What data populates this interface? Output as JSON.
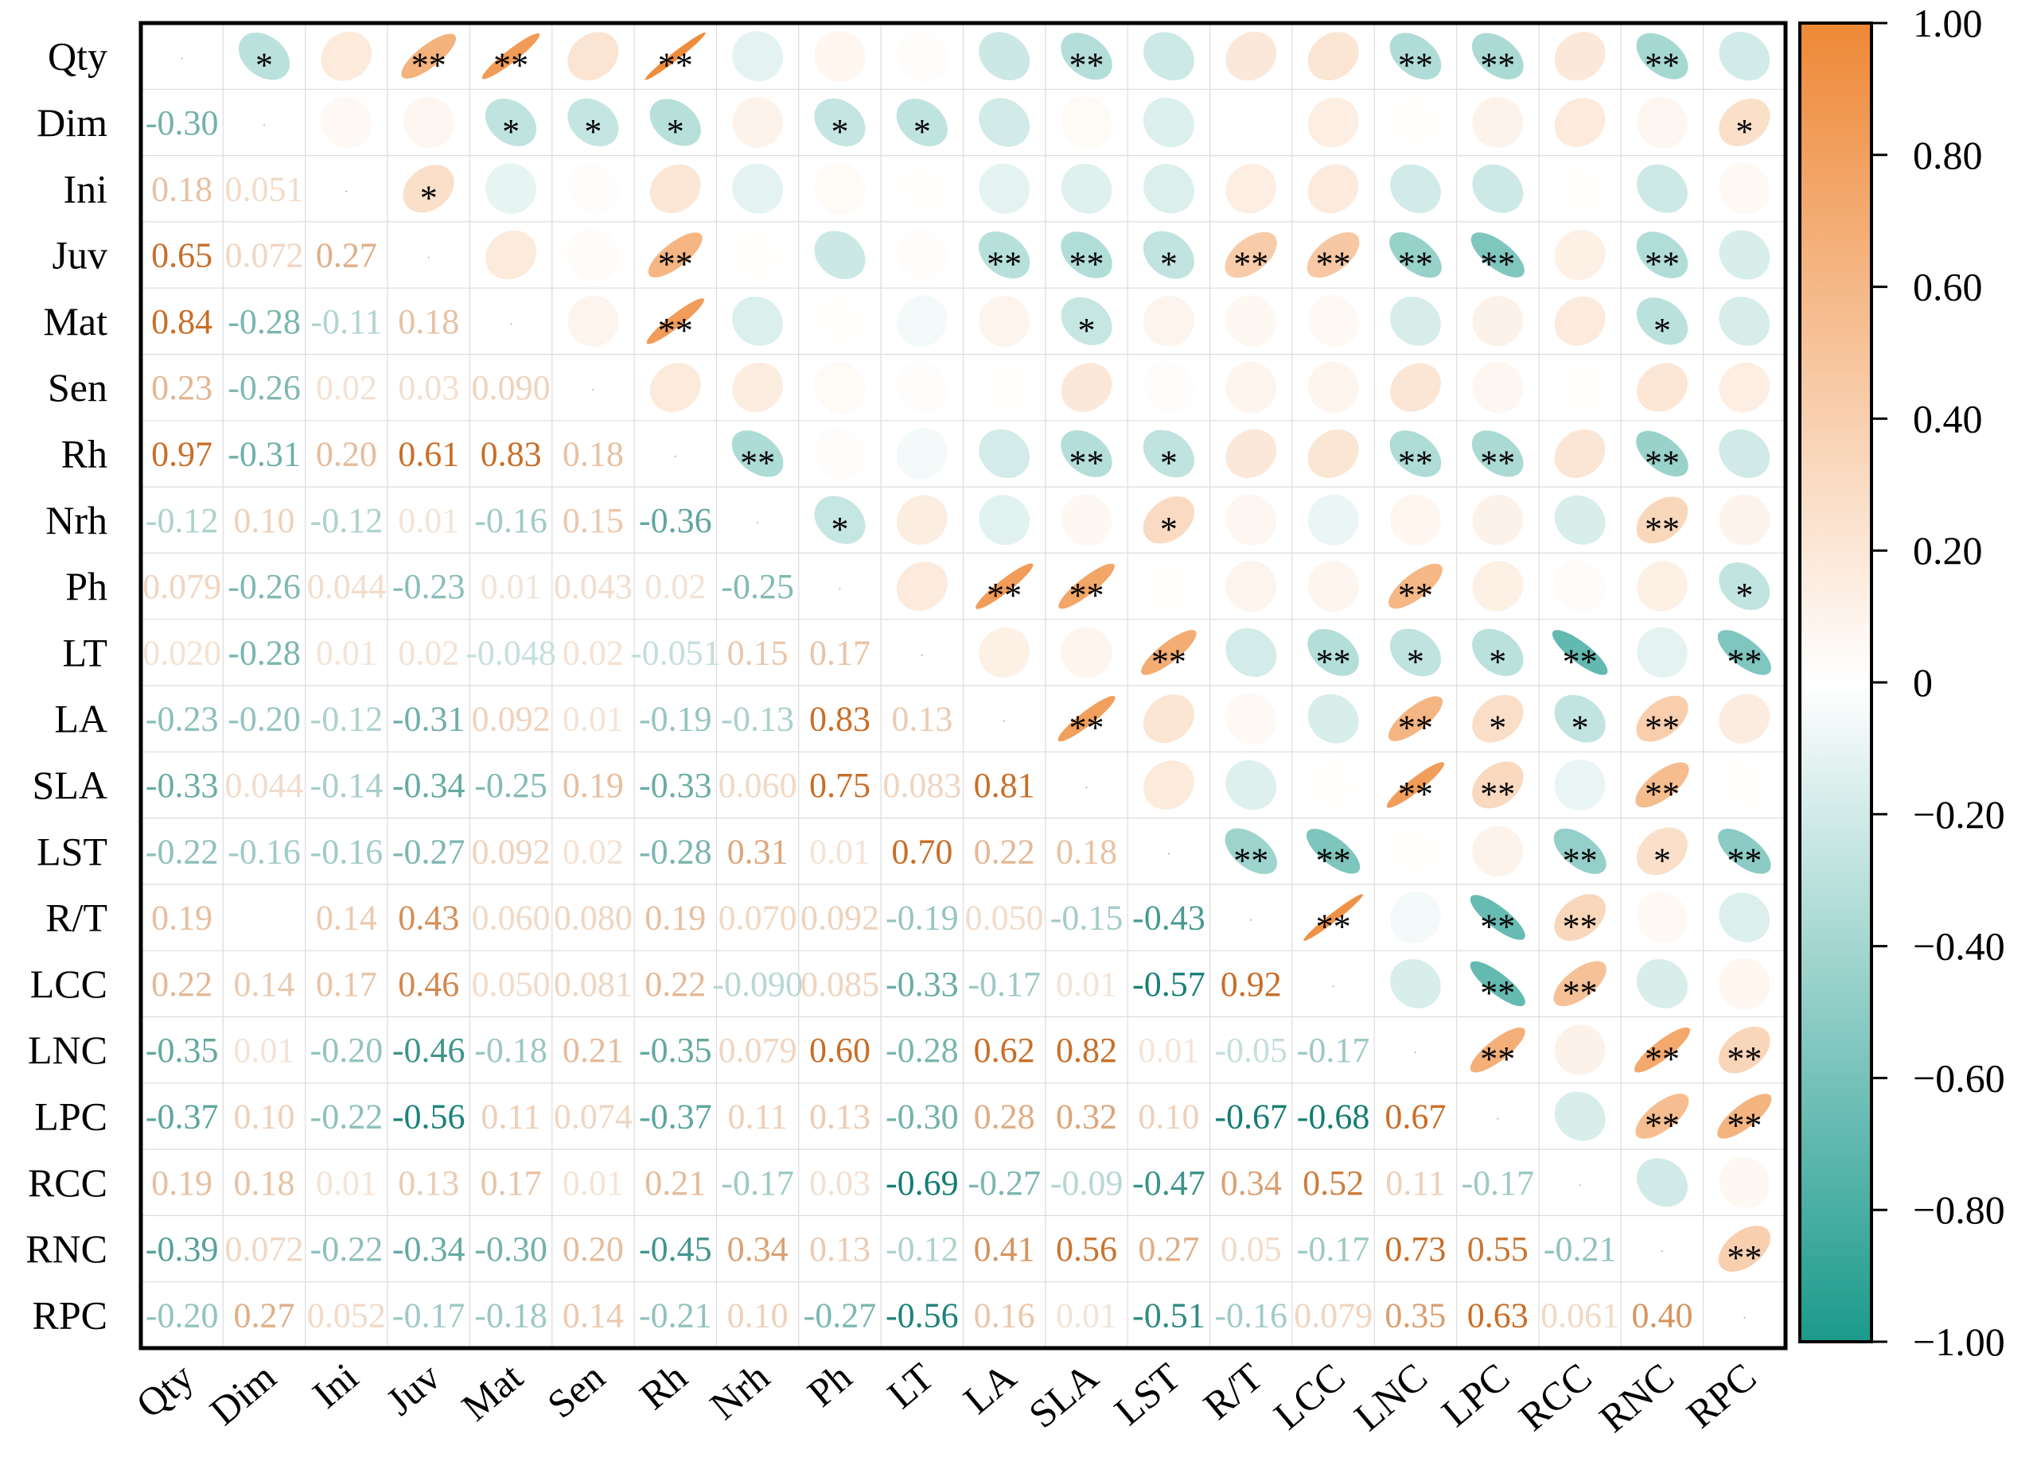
{
  "chart_data": {
    "type": "heatmap",
    "variant": "correlation-matrix (ellipses upper triangle, coefficients lower triangle, significance stars)",
    "variables": [
      "Qty",
      "Dim",
      "Ini",
      "Juv",
      "Mat",
      "Sen",
      "Rh",
      "Nrh",
      "Ph",
      "LT",
      "LA",
      "SLA",
      "LST",
      "R/T",
      "LCC",
      "LNC",
      "LPC",
      "RCC",
      "RNC",
      "RPC"
    ],
    "coefficient_labels": [
      [
        "",
        "",
        "",
        "",
        "",
        "",
        "",
        "",
        "",
        "",
        "",
        "",
        "",
        "",
        "",
        "",
        "",
        "",
        "",
        ""
      ],
      [
        "-0.30",
        "",
        "",
        "",
        "",
        "",
        "",
        "",
        "",
        "",
        "",
        "",
        "",
        "",
        "",
        "",
        "",
        "",
        "",
        ""
      ],
      [
        "0.18",
        "0.051",
        "",
        "",
        "",
        "",
        "",
        "",
        "",
        "",
        "",
        "",
        "",
        "",
        "",
        "",
        "",
        "",
        "",
        ""
      ],
      [
        "0.65",
        "0.072",
        "0.27",
        "",
        "",
        "",
        "",
        "",
        "",
        "",
        "",
        "",
        "",
        "",
        "",
        "",
        "",
        "",
        "",
        ""
      ],
      [
        "0.84",
        "-0.28",
        "-0.11",
        "0.18",
        "",
        "",
        "",
        "",
        "",
        "",
        "",
        "",
        "",
        "",
        "",
        "",
        "",
        "",
        "",
        ""
      ],
      [
        "0.23",
        "-0.26",
        "0.02",
        "0.03",
        "0.090",
        "",
        "",
        "",
        "",
        "",
        "",
        "",
        "",
        "",
        "",
        "",
        "",
        "",
        "",
        ""
      ],
      [
        "0.97",
        "-0.31",
        "0.20",
        "0.61",
        "0.83",
        "0.18",
        "",
        "",
        "",
        "",
        "",
        "",
        "",
        "",
        "",
        "",
        "",
        "",
        "",
        ""
      ],
      [
        "-0.12",
        "0.10",
        "-0.12",
        "0.01",
        "-0.16",
        "0.15",
        "-0.36",
        "",
        "",
        "",
        "",
        "",
        "",
        "",
        "",
        "",
        "",
        "",
        "",
        ""
      ],
      [
        "0.079",
        "-0.26",
        "0.044",
        "-0.23",
        "0.01",
        "0.043",
        "0.02",
        "-0.25",
        "",
        "",
        "",
        "",
        "",
        "",
        "",
        "",
        "",
        "",
        "",
        ""
      ],
      [
        "0.020",
        "-0.28",
        "0.01",
        "0.02",
        "-0.048",
        "0.02",
        "-0.051",
        "0.15",
        "0.17",
        "",
        "",
        "",
        "",
        "",
        "",
        "",
        "",
        "",
        "",
        ""
      ],
      [
        "-0.23",
        "-0.20",
        "-0.12",
        "-0.31",
        "0.092",
        "0.01",
        "-0.19",
        "-0.13",
        "0.83",
        "0.13",
        "",
        "",
        "",
        "",
        "",
        "",
        "",
        "",
        "",
        ""
      ],
      [
        "-0.33",
        "0.044",
        "-0.14",
        "-0.34",
        "-0.25",
        "0.19",
        "-0.33",
        "0.060",
        "0.75",
        "0.083",
        "0.81",
        "",
        "",
        "",
        "",
        "",
        "",
        "",
        "",
        ""
      ],
      [
        "-0.22",
        "-0.16",
        "-0.16",
        "-0.27",
        "0.092",
        "0.02",
        "-0.28",
        "0.31",
        "0.01",
        "0.70",
        "0.22",
        "0.18",
        "",
        "",
        "",
        "",
        "",
        "",
        "",
        ""
      ],
      [
        "0.19",
        "",
        "0.14",
        "0.43",
        "0.060",
        "0.080",
        "0.19",
        "0.070",
        "0.092",
        "-0.19",
        "0.050",
        "-0.15",
        "-0.43",
        "",
        "",
        "",
        "",
        "",
        "",
        ""
      ],
      [
        "0.22",
        "0.14",
        "0.17",
        "0.46",
        "0.050",
        "0.081",
        "0.22",
        "-0.090",
        "0.085",
        "-0.33",
        "-0.17",
        "0.01",
        "-0.57",
        "0.92",
        "",
        "",
        "",
        "",
        "",
        ""
      ],
      [
        "-0.35",
        "0.01",
        "-0.20",
        "-0.46",
        "-0.18",
        "0.21",
        "-0.35",
        "0.079",
        "0.60",
        "-0.28",
        "0.62",
        "0.82",
        "0.01",
        "-0.05",
        "-0.17",
        "",
        "",
        "",
        "",
        ""
      ],
      [
        "-0.37",
        "0.10",
        "-0.22",
        "-0.56",
        "0.11",
        "0.074",
        "-0.37",
        "0.11",
        "0.13",
        "-0.30",
        "0.28",
        "0.32",
        "0.10",
        "-0.67",
        "-0.68",
        "0.67",
        "",
        "",
        "",
        ""
      ],
      [
        "0.19",
        "0.18",
        "0.01",
        "0.13",
        "0.17",
        "0.01",
        "0.21",
        "-0.17",
        "0.03",
        "-0.69",
        "-0.27",
        "-0.09",
        "-0.47",
        "0.34",
        "0.52",
        "0.11",
        "-0.17",
        "",
        "",
        ""
      ],
      [
        "-0.39",
        "0.072",
        "-0.22",
        "-0.34",
        "-0.30",
        "0.20",
        "-0.45",
        "0.34",
        "0.13",
        "-0.12",
        "0.41",
        "0.56",
        "0.27",
        "0.05",
        "-0.17",
        "0.73",
        "0.55",
        "-0.21",
        "",
        ""
      ],
      [
        "-0.20",
        "0.27",
        "0.052",
        "-0.17",
        "-0.18",
        "0.14",
        "-0.21",
        "0.10",
        "-0.27",
        "-0.56",
        "0.16",
        "0.01",
        "-0.51",
        "-0.16",
        "0.079",
        "0.35",
        "0.63",
        "0.061",
        "0.40",
        ""
      ]
    ],
    "significance": [
      [
        "",
        "*",
        "",
        "**",
        "**",
        "",
        "**",
        "",
        "",
        "",
        "",
        "**",
        "",
        "",
        "",
        "**",
        "**",
        "",
        "**",
        ""
      ],
      [
        "",
        "",
        "",
        "",
        "*",
        "*",
        "*",
        "",
        "*",
        "*",
        "",
        "",
        "",
        "",
        "",
        "",
        "",
        "",
        "",
        "*"
      ],
      [
        "",
        "",
        "",
        "*",
        "",
        "",
        "",
        "",
        "",
        "",
        "",
        "",
        "",
        "",
        "",
        "",
        "",
        "",
        "",
        ""
      ],
      [
        "",
        "",
        "",
        "",
        "",
        "",
        "**",
        "",
        "",
        "",
        "**",
        "**",
        "*",
        "**",
        "**",
        "**",
        "**",
        "",
        "**",
        ""
      ],
      [
        "",
        "",
        "",
        "",
        "",
        "",
        "**",
        "",
        "",
        "",
        "",
        "*",
        "",
        "",
        "",
        "",
        "",
        "",
        "*",
        ""
      ],
      [
        "",
        "",
        "",
        "",
        "",
        "",
        "",
        "",
        "",
        "",
        "",
        "",
        "",
        "",
        "",
        "",
        "",
        "",
        "",
        ""
      ],
      [
        "",
        "",
        "",
        "",
        "",
        "",
        "",
        "**",
        "",
        "",
        "",
        "**",
        "*",
        "",
        "",
        "**",
        "**",
        "",
        "**",
        ""
      ],
      [
        "",
        "",
        "",
        "",
        "",
        "",
        "",
        "",
        "*",
        "",
        "",
        "",
        "*",
        "",
        "",
        "",
        "",
        "",
        "**",
        ""
      ],
      [
        "",
        "",
        "",
        "",
        "",
        "",
        "",
        "",
        "",
        "",
        "**",
        "**",
        "",
        "",
        "",
        "**",
        "",
        "",
        "",
        "*"
      ],
      [
        "",
        "",
        "",
        "",
        "",
        "",
        "",
        "",
        "",
        "",
        "",
        "",
        "**",
        "",
        "**",
        "*",
        "*",
        "**",
        "",
        "**"
      ],
      [
        "",
        "",
        "",
        "",
        "",
        "",
        "",
        "",
        "",
        "",
        "",
        "**",
        "",
        "",
        "",
        "**",
        "*",
        "*",
        "**",
        ""
      ],
      [
        "",
        "",
        "",
        "",
        "",
        "",
        "",
        "",
        "",
        "",
        "",
        "",
        "",
        "",
        "",
        "**",
        "**",
        "",
        "**",
        ""
      ],
      [
        "",
        "",
        "",
        "",
        "",
        "",
        "",
        "",
        "",
        "",
        "",
        "",
        "",
        "**",
        "**",
        "",
        "",
        "**",
        "*",
        "**"
      ],
      [
        "",
        "",
        "",
        "",
        "",
        "",
        "",
        "",
        "",
        "",
        "",
        "",
        "",
        "",
        "**",
        "",
        "**",
        "**",
        "",
        ""
      ],
      [
        "",
        "",
        "",
        "",
        "",
        "",
        "",
        "",
        "",
        "",
        "",
        "",
        "",
        "",
        "",
        "",
        "**",
        "**",
        "",
        ""
      ],
      [
        "",
        "",
        "",
        "",
        "",
        "",
        "",
        "",
        "",
        "",
        "",
        "",
        "",
        "",
        "",
        "",
        "**",
        "",
        "**",
        "**"
      ],
      [
        "",
        "",
        "",
        "",
        "",
        "",
        "",
        "",
        "",
        "",
        "",
        "",
        "",
        "",
        "",
        "",
        "",
        "",
        "**",
        "**"
      ],
      [
        "",
        "",
        "",
        "",
        "",
        "",
        "",
        "",
        "",
        "",
        "",
        "",
        "",
        "",
        "",
        "",
        "",
        "",
        "",
        ""
      ],
      [
        "",
        "",
        "",
        "",
        "",
        "",
        "",
        "",
        "",
        "",
        "",
        "",
        "",
        "",
        "",
        "",
        "",
        "",
        "",
        "**"
      ],
      [
        "",
        "",
        "",
        "",
        "",
        "",
        "",
        "",
        "",
        "",
        "",
        "",
        "",
        "",
        "",
        "",
        "",
        "",
        "",
        ""
      ]
    ],
    "colorbar": {
      "range": [
        -1.0,
        1.0
      ],
      "ticks": [
        "1.00",
        "0.80",
        "0.60",
        "0.40",
        "0.20",
        "0",
        "−0.20",
        "−0.40",
        "−0.60",
        "−0.80",
        "−1.00"
      ],
      "colors": {
        "negative": "#1b9a8c",
        "zero": "#ffffff",
        "positive": "#ee8836"
      }
    },
    "legend_position": "right"
  }
}
